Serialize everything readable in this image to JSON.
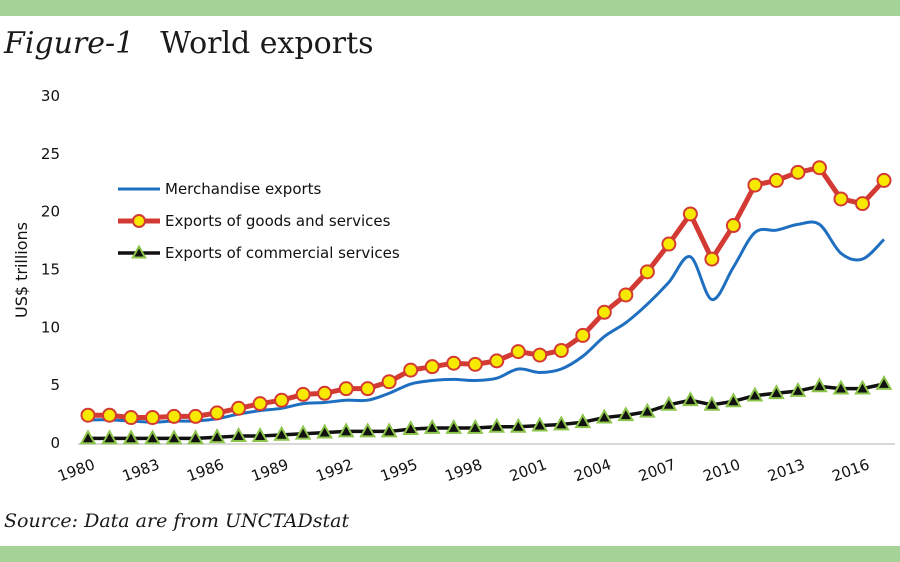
{
  "figure": {
    "number_label": "Figure-1",
    "title": "World exports",
    "source": "Source:  Data are from UNCTADstat"
  },
  "colors": {
    "band": "#a5d395",
    "merchandise": "#1f6fc0",
    "goods_services_line": "#d43a34",
    "goods_services_marker_fill": "#f7ea00",
    "commercial_line": "#111111",
    "commercial_marker_fill": "#111111",
    "commercial_marker_edge": "#8cc44a",
    "axis": "#d9d9d9"
  },
  "chart_data": {
    "type": "line",
    "title": "World exports",
    "xlabel": "",
    "ylabel": "US$ trillions",
    "ylim": [
      0,
      30
    ],
    "yticks": [
      0,
      5,
      10,
      15,
      20,
      25,
      30
    ],
    "xtick_labels": [
      "1980",
      "1983",
      "1986",
      "1989",
      "1992",
      "1995",
      "1998",
      "2001",
      "2004",
      "2007",
      "2010",
      "2013",
      "2016"
    ],
    "grid": false,
    "legend_position": "upper-left",
    "x": [
      1980,
      1981,
      1982,
      1983,
      1984,
      1985,
      1986,
      1987,
      1988,
      1989,
      1990,
      1991,
      1992,
      1993,
      1994,
      1995,
      1996,
      1997,
      1998,
      1999,
      2000,
      2001,
      2002,
      2003,
      2004,
      2005,
      2006,
      2007,
      2008,
      2009,
      2010,
      2011,
      2012,
      2013,
      2014,
      2015,
      2016,
      2017
    ],
    "series": [
      {
        "name": "Merchandise exports",
        "marker": "none",
        "values": [
          2.0,
          2.0,
          1.9,
          1.8,
          1.9,
          1.9,
          2.1,
          2.5,
          2.8,
          3.0,
          3.4,
          3.5,
          3.7,
          3.7,
          4.3,
          5.1,
          5.4,
          5.5,
          5.4,
          5.6,
          6.4,
          6.1,
          6.4,
          7.5,
          9.2,
          10.4,
          12.0,
          13.9,
          16.1,
          12.4,
          15.2,
          18.2,
          18.4,
          18.9,
          18.9,
          16.4,
          15.9,
          17.6
        ]
      },
      {
        "name": "Exports of goods and services",
        "marker": "circle",
        "values": [
          2.4,
          2.4,
          2.2,
          2.2,
          2.3,
          2.3,
          2.6,
          3.0,
          3.4,
          3.7,
          4.2,
          4.3,
          4.7,
          4.7,
          5.3,
          6.3,
          6.6,
          6.9,
          6.8,
          7.1,
          7.9,
          7.6,
          8.0,
          9.3,
          11.3,
          12.8,
          14.8,
          17.2,
          19.8,
          15.9,
          18.8,
          22.3,
          22.7,
          23.4,
          23.8,
          21.1,
          20.7,
          22.7
        ]
      },
      {
        "name": "Exports of commercial services",
        "marker": "triangle",
        "values": [
          0.4,
          0.4,
          0.4,
          0.4,
          0.4,
          0.4,
          0.5,
          0.6,
          0.6,
          0.7,
          0.8,
          0.9,
          1.0,
          1.0,
          1.0,
          1.2,
          1.3,
          1.3,
          1.3,
          1.4,
          1.4,
          1.5,
          1.6,
          1.8,
          2.2,
          2.4,
          2.7,
          3.3,
          3.7,
          3.3,
          3.6,
          4.1,
          4.3,
          4.5,
          4.9,
          4.7,
          4.7,
          5.1
        ]
      }
    ]
  }
}
